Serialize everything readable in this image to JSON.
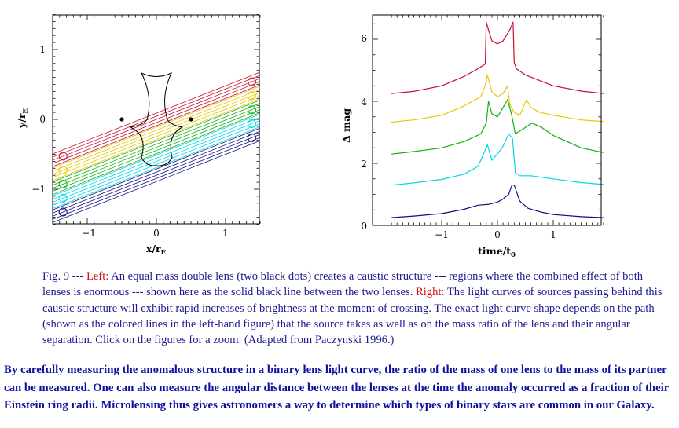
{
  "figures": {
    "left": {
      "xlabel": "x/r",
      "xlabel_sub": "E",
      "ylabel": "y/r",
      "ylabel_sub": "E",
      "xticks": [
        "−1",
        "0",
        "1"
      ],
      "yticks": [
        "1",
        "0",
        "−1"
      ]
    },
    "right": {
      "xlabel": "time/t",
      "xlabel_sub": "0",
      "ylabel": "Δ mag",
      "xticks": [
        "−1",
        "0",
        "1"
      ],
      "yticks": [
        "6",
        "4",
        "2",
        "0"
      ]
    }
  },
  "chart_data": [
    {
      "type": "line",
      "panel": "left",
      "xlabel": "x/r_E",
      "ylabel": "y/r_E",
      "xlim": [
        -1.5,
        1.5
      ],
      "ylim": [
        -1.5,
        1.5
      ],
      "lenses": [
        {
          "x": -0.5,
          "y": 0
        },
        {
          "x": 0.5,
          "y": 0
        }
      ],
      "source_paths": [
        {
          "color": "#c8102e",
          "y_at_x0": 0.0,
          "slope": 0.39
        },
        {
          "color": "#e8c800",
          "y_at_x0": -0.2,
          "slope": 0.39
        },
        {
          "color": "#10b010",
          "y_at_x0": -0.4,
          "slope": 0.39
        },
        {
          "color": "#00d8e8",
          "y_at_x0": -0.6,
          "slope": 0.39
        },
        {
          "color": "#101080",
          "y_at_x0": -0.8,
          "slope": 0.39
        }
      ]
    },
    {
      "type": "line",
      "panel": "right",
      "xlabel": "time/t_0",
      "ylabel": "Δ mag",
      "xlim": [
        -1.9,
        1.9
      ],
      "ylim": [
        0,
        6.8
      ],
      "series": [
        {
          "color": "#c8102e",
          "x": [
            -1.9,
            -1.5,
            -1,
            -0.6,
            -0.35,
            -0.22,
            -0.2,
            -0.16,
            -0.1,
            0,
            0.1,
            0.22,
            0.28,
            0.3,
            0.34,
            0.5,
            1,
            1.5,
            1.9
          ],
          "values": [
            4.25,
            4.32,
            4.5,
            4.8,
            5.05,
            5.2,
            6.55,
            6.3,
            5.95,
            5.85,
            5.95,
            6.3,
            6.55,
            5.25,
            5.05,
            4.85,
            4.5,
            4.33,
            4.25
          ]
        },
        {
          "color": "#e8c800",
          "x": [
            -1.9,
            -1.5,
            -1,
            -0.6,
            -0.3,
            -0.22,
            -0.18,
            -0.1,
            0,
            0.1,
            0.18,
            0.22,
            0.3,
            0.4,
            0.52,
            0.6,
            0.75,
            1,
            1.5,
            1.9
          ],
          "values": [
            3.33,
            3.4,
            3.55,
            3.85,
            4.15,
            4.5,
            4.85,
            4.3,
            4.15,
            4.25,
            4.5,
            3.9,
            3.65,
            3.55,
            4.05,
            3.8,
            3.65,
            3.55,
            3.4,
            3.35
          ]
        },
        {
          "color": "#10b010",
          "x": [
            -1.9,
            -1.5,
            -1,
            -0.6,
            -0.3,
            -0.2,
            -0.16,
            -0.1,
            0,
            0.1,
            0.18,
            0.25,
            0.32,
            0.45,
            0.62,
            0.8,
            1,
            1.5,
            1.9
          ],
          "values": [
            2.3,
            2.38,
            2.5,
            2.7,
            2.95,
            3.3,
            4.0,
            3.6,
            3.5,
            3.8,
            4.05,
            3.6,
            2.95,
            3.1,
            3.3,
            3.15,
            2.9,
            2.5,
            2.35
          ]
        },
        {
          "color": "#00d8e8",
          "x": [
            -1.9,
            -1.5,
            -1,
            -0.6,
            -0.35,
            -0.25,
            -0.18,
            -0.1,
            0,
            0.1,
            0.2,
            0.27,
            0.32,
            0.4,
            0.6,
            1,
            1.5,
            1.9
          ],
          "values": [
            1.3,
            1.37,
            1.48,
            1.65,
            1.9,
            2.3,
            2.6,
            2.1,
            2.3,
            2.55,
            2.95,
            2.8,
            1.7,
            1.6,
            1.6,
            1.5,
            1.38,
            1.32
          ]
        },
        {
          "color": "#101080",
          "x": [
            -1.9,
            -1.5,
            -1,
            -0.6,
            -0.35,
            -0.15,
            0,
            0.1,
            0.2,
            0.26,
            0.3,
            0.34,
            0.4,
            0.55,
            0.8,
            1,
            1.5,
            1.9
          ],
          "values": [
            0.25,
            0.3,
            0.38,
            0.52,
            0.65,
            0.68,
            0.75,
            0.85,
            1.0,
            1.3,
            1.3,
            1.1,
            0.78,
            0.55,
            0.42,
            0.35,
            0.28,
            0.25
          ]
        }
      ]
    }
  ],
  "caption": {
    "prefix": "Fig. 9 --- ",
    "left_label": "Left:",
    "left_text": " An equal mass double lens (two black dots) creates a caustic structure --- regions where the combined effect of both lenses is enormous --- shown here as the solid black line between the two lenses. ",
    "right_label": "Right:",
    "right_text": " The light curves of sources passing behind this caustic structure will exhibit rapid increases of brightness at the moment of crossing. The exact light curve shape depends on the path (shown as the colored lines in the left-hand figure) that the source takes as well as on the mass ratio of the lens and their angular separation. Click on the figures for a zoom. (Adapted from Paczynski 1996.)"
  },
  "body_text": "By carefully measuring the anomalous structure in a binary lens light curve, the ratio of the mass of one lens to the mass of its partner can be measured. One can also measure the angular distance between the lenses at the time the anomaly occurred as a fraction of their Einstein ring radii. Microlensing thus gives astronomers a way to determine which types of binary stars are common in our Galaxy."
}
